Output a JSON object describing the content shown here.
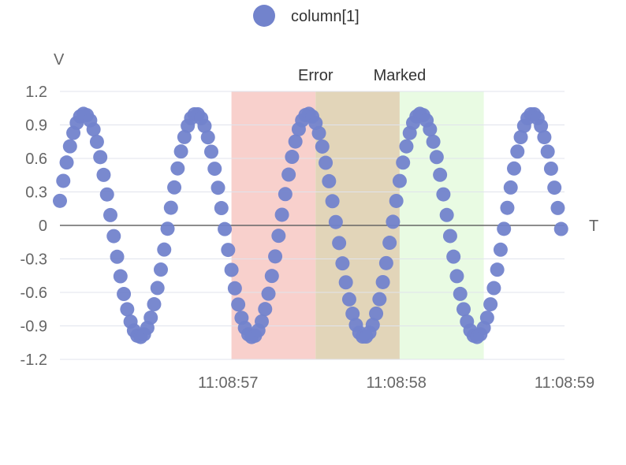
{
  "chart_data": {
    "type": "scatter",
    "legend": {
      "position": "top-center"
    },
    "xlabel": "T",
    "ylabel": "V",
    "ylim": [
      -1.2,
      1.2
    ],
    "yticks": [
      1.2,
      0.9,
      0.6,
      0.3,
      0,
      -0.3,
      -0.6,
      -0.9,
      -1.2
    ],
    "ytick_labels": [
      "1.2",
      "0.9",
      "0.6",
      "0.3",
      "0",
      "-0.3",
      "-0.6",
      "-0.9",
      "-1.2"
    ],
    "xlim_seconds": [
      56.0,
      59.0
    ],
    "xticks": [
      {
        "value": 57,
        "label": "11:08:57"
      },
      {
        "value": 58,
        "label": "11:08:58"
      },
      {
        "value": 59,
        "label": "11:08:59"
      }
    ],
    "grid": true,
    "zero_line": true,
    "series": [
      {
        "name": "column[1]",
        "color": "#7283cc",
        "shape": "sin",
        "amplitude": 1.0,
        "period_seconds": 0.6667,
        "first_x": 56.0,
        "last_x": 58.98,
        "first_y": 0.22,
        "last_y": -0.11,
        "point_count": 150
      }
    ],
    "bands": [
      {
        "label": "Error",
        "x_from": 57.02,
        "x_to": 57.52,
        "color": "#f8d0cc"
      },
      {
        "label": "",
        "x_from": 57.52,
        "x_to": 58.02,
        "color": "#e2d5b9"
      },
      {
        "label": "Marked",
        "x_from": 58.02,
        "x_to": 58.52,
        "color": "#e9fbe3"
      }
    ],
    "band_labels": [
      {
        "text": "Error",
        "x": 57.52
      },
      {
        "text": "Marked",
        "x": 58.02
      }
    ]
  }
}
